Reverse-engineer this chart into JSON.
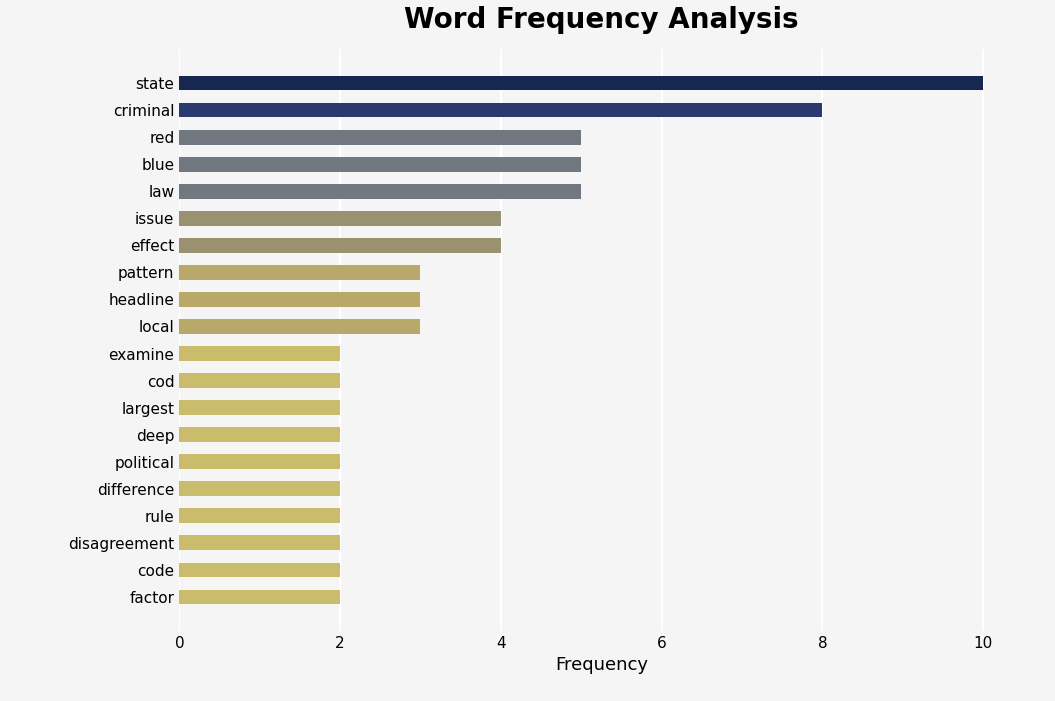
{
  "title": "Word Frequency Analysis",
  "xlabel": "Frequency",
  "categories": [
    "state",
    "criminal",
    "red",
    "blue",
    "law",
    "issue",
    "effect",
    "pattern",
    "headline",
    "local",
    "examine",
    "cod",
    "largest",
    "deep",
    "political",
    "difference",
    "rule",
    "disagreement",
    "code",
    "factor"
  ],
  "values": [
    10,
    8,
    5,
    5,
    5,
    4,
    4,
    3,
    3,
    3,
    2,
    2,
    2,
    2,
    2,
    2,
    2,
    2,
    2,
    2
  ],
  "bar_colors": [
    "#16284f",
    "#2b3a6e",
    "#717880",
    "#717880",
    "#717880",
    "#9a9170",
    "#9a9170",
    "#b8a96a",
    "#b8a96a",
    "#b8a96a",
    "#c9bc6a",
    "#c9bc6a",
    "#c9bc6a",
    "#c9bc6a",
    "#c9bc6a",
    "#c9bc6a",
    "#c9bc6a",
    "#c9bc6a",
    "#c9bc6a",
    "#c9bc6a"
  ],
  "xlim": [
    0,
    10.5
  ],
  "xticks": [
    0,
    2,
    4,
    6,
    8,
    10
  ],
  "background_color": "#f5f5f5",
  "title_fontsize": 20,
  "label_fontsize": 13,
  "tick_fontsize": 11,
  "bar_height": 0.55,
  "figsize": [
    10.55,
    7.01
  ],
  "dpi": 100
}
